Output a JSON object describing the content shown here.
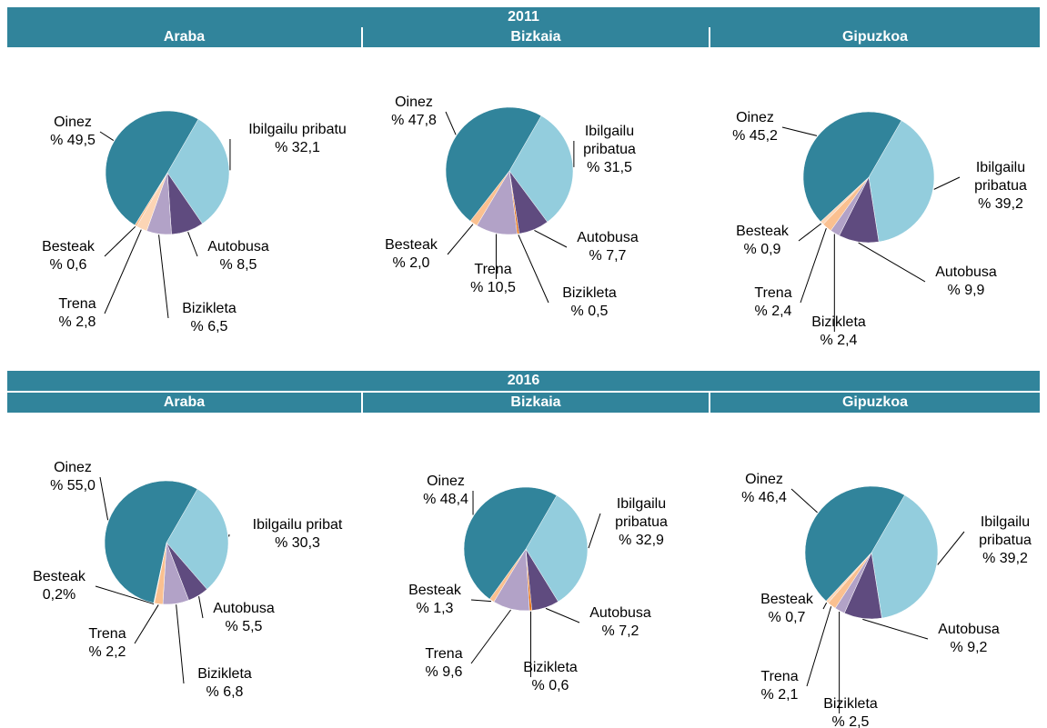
{
  "sections": [
    {
      "title": "2011",
      "regions": [
        "Araba",
        "Bizkaia",
        "Gipuzkoa"
      ]
    },
    {
      "title": "2016",
      "regions": [
        "Araba",
        "Bizkaia",
        "Gipuzkoa"
      ]
    }
  ],
  "chart_data": [
    {
      "type": "pie",
      "categories": [
        "Ibilgailu pribatu",
        "Autobusa",
        "Bizikleta",
        "Trena",
        "Besteak",
        "Oinez"
      ],
      "values": [
        32.1,
        8.5,
        6.5,
        2.8,
        0.6,
        49.5
      ],
      "value_labels": [
        "% 32,1",
        "% 8,5",
        "% 6,5",
        "% 2,8",
        "% 0,6",
        "% 49,5"
      ],
      "colors": [
        "#93cddd",
        "#5f4b7f",
        "#b2a2c7",
        "#fcd5b5",
        "#fac090",
        "#31849b"
      ]
    },
    {
      "type": "pie",
      "categories": [
        "Ibilgailu pribatua",
        "Autobusa",
        "Bizikleta",
        "Trena",
        "Besteak",
        "Oinez"
      ],
      "values": [
        31.5,
        7.7,
        0.5,
        10.5,
        2.0,
        47.8
      ],
      "value_labels": [
        "% 31,5",
        "% 7,7",
        "% 0,5",
        "% 10,5",
        "% 2,0",
        "% 47,8"
      ],
      "colors": [
        "#93cddd",
        "#5f4b7f",
        "#e46c0a",
        "#b2a2c7",
        "#fac090",
        "#31849b"
      ]
    },
    {
      "type": "pie",
      "categories": [
        "Ibilgailu pribatua",
        "Autobusa",
        "Bizikleta",
        "Trena",
        "Besteak",
        "Oinez"
      ],
      "values": [
        39.2,
        9.9,
        2.4,
        2.4,
        0.9,
        45.2
      ],
      "value_labels": [
        "% 39,2",
        "% 9,9",
        "% 2,4",
        "% 2,4",
        "% 0,9",
        "% 45,2"
      ],
      "colors": [
        "#93cddd",
        "#5f4b7f",
        "#b2a2c7",
        "#fac090",
        "#fcd5b5",
        "#31849b"
      ]
    },
    {
      "type": "pie",
      "categories": [
        "Ibilgailu pribat",
        "Autobusa",
        "Bizikleta",
        "Trena",
        "Besteak",
        "Oinez"
      ],
      "values": [
        30.3,
        5.5,
        6.8,
        2.2,
        0.2,
        55.0
      ],
      "value_labels": [
        "% 30,3",
        "% 5,5",
        "% 6,8",
        "% 2,2",
        "0,2%",
        "% 55,0"
      ],
      "colors": [
        "#93cddd",
        "#5f4b7f",
        "#b2a2c7",
        "#fac090",
        "#fcd5b5",
        "#31849b"
      ]
    },
    {
      "type": "pie",
      "categories": [
        "Ibilgailu pribatua",
        "Autobusa",
        "Bizikleta",
        "Trena",
        "Besteak",
        "Oinez"
      ],
      "values": [
        32.9,
        7.2,
        0.6,
        9.6,
        1.3,
        48.4
      ],
      "value_labels": [
        "% 32,9",
        "% 7,2",
        "% 0,6",
        "% 9,6",
        "% 1,3",
        "% 48,4"
      ],
      "colors": [
        "#93cddd",
        "#5f4b7f",
        "#e46c0a",
        "#b2a2c7",
        "#fac090",
        "#31849b"
      ]
    },
    {
      "type": "pie",
      "categories": [
        "Ibilgailu pribatua",
        "Autobusa",
        "Bizikleta",
        "Trena",
        "Besteak",
        "Oinez"
      ],
      "values": [
        39.2,
        9.2,
        2.5,
        2.1,
        0.7,
        46.4
      ],
      "value_labels": [
        "% 39,2",
        "% 9,2",
        "% 2,5",
        "% 2,1",
        "% 0,7",
        "% 46,4"
      ],
      "colors": [
        "#93cddd",
        "#5f4b7f",
        "#b2a2c7",
        "#fac090",
        "#fcd5b5",
        "#31849b"
      ]
    }
  ]
}
